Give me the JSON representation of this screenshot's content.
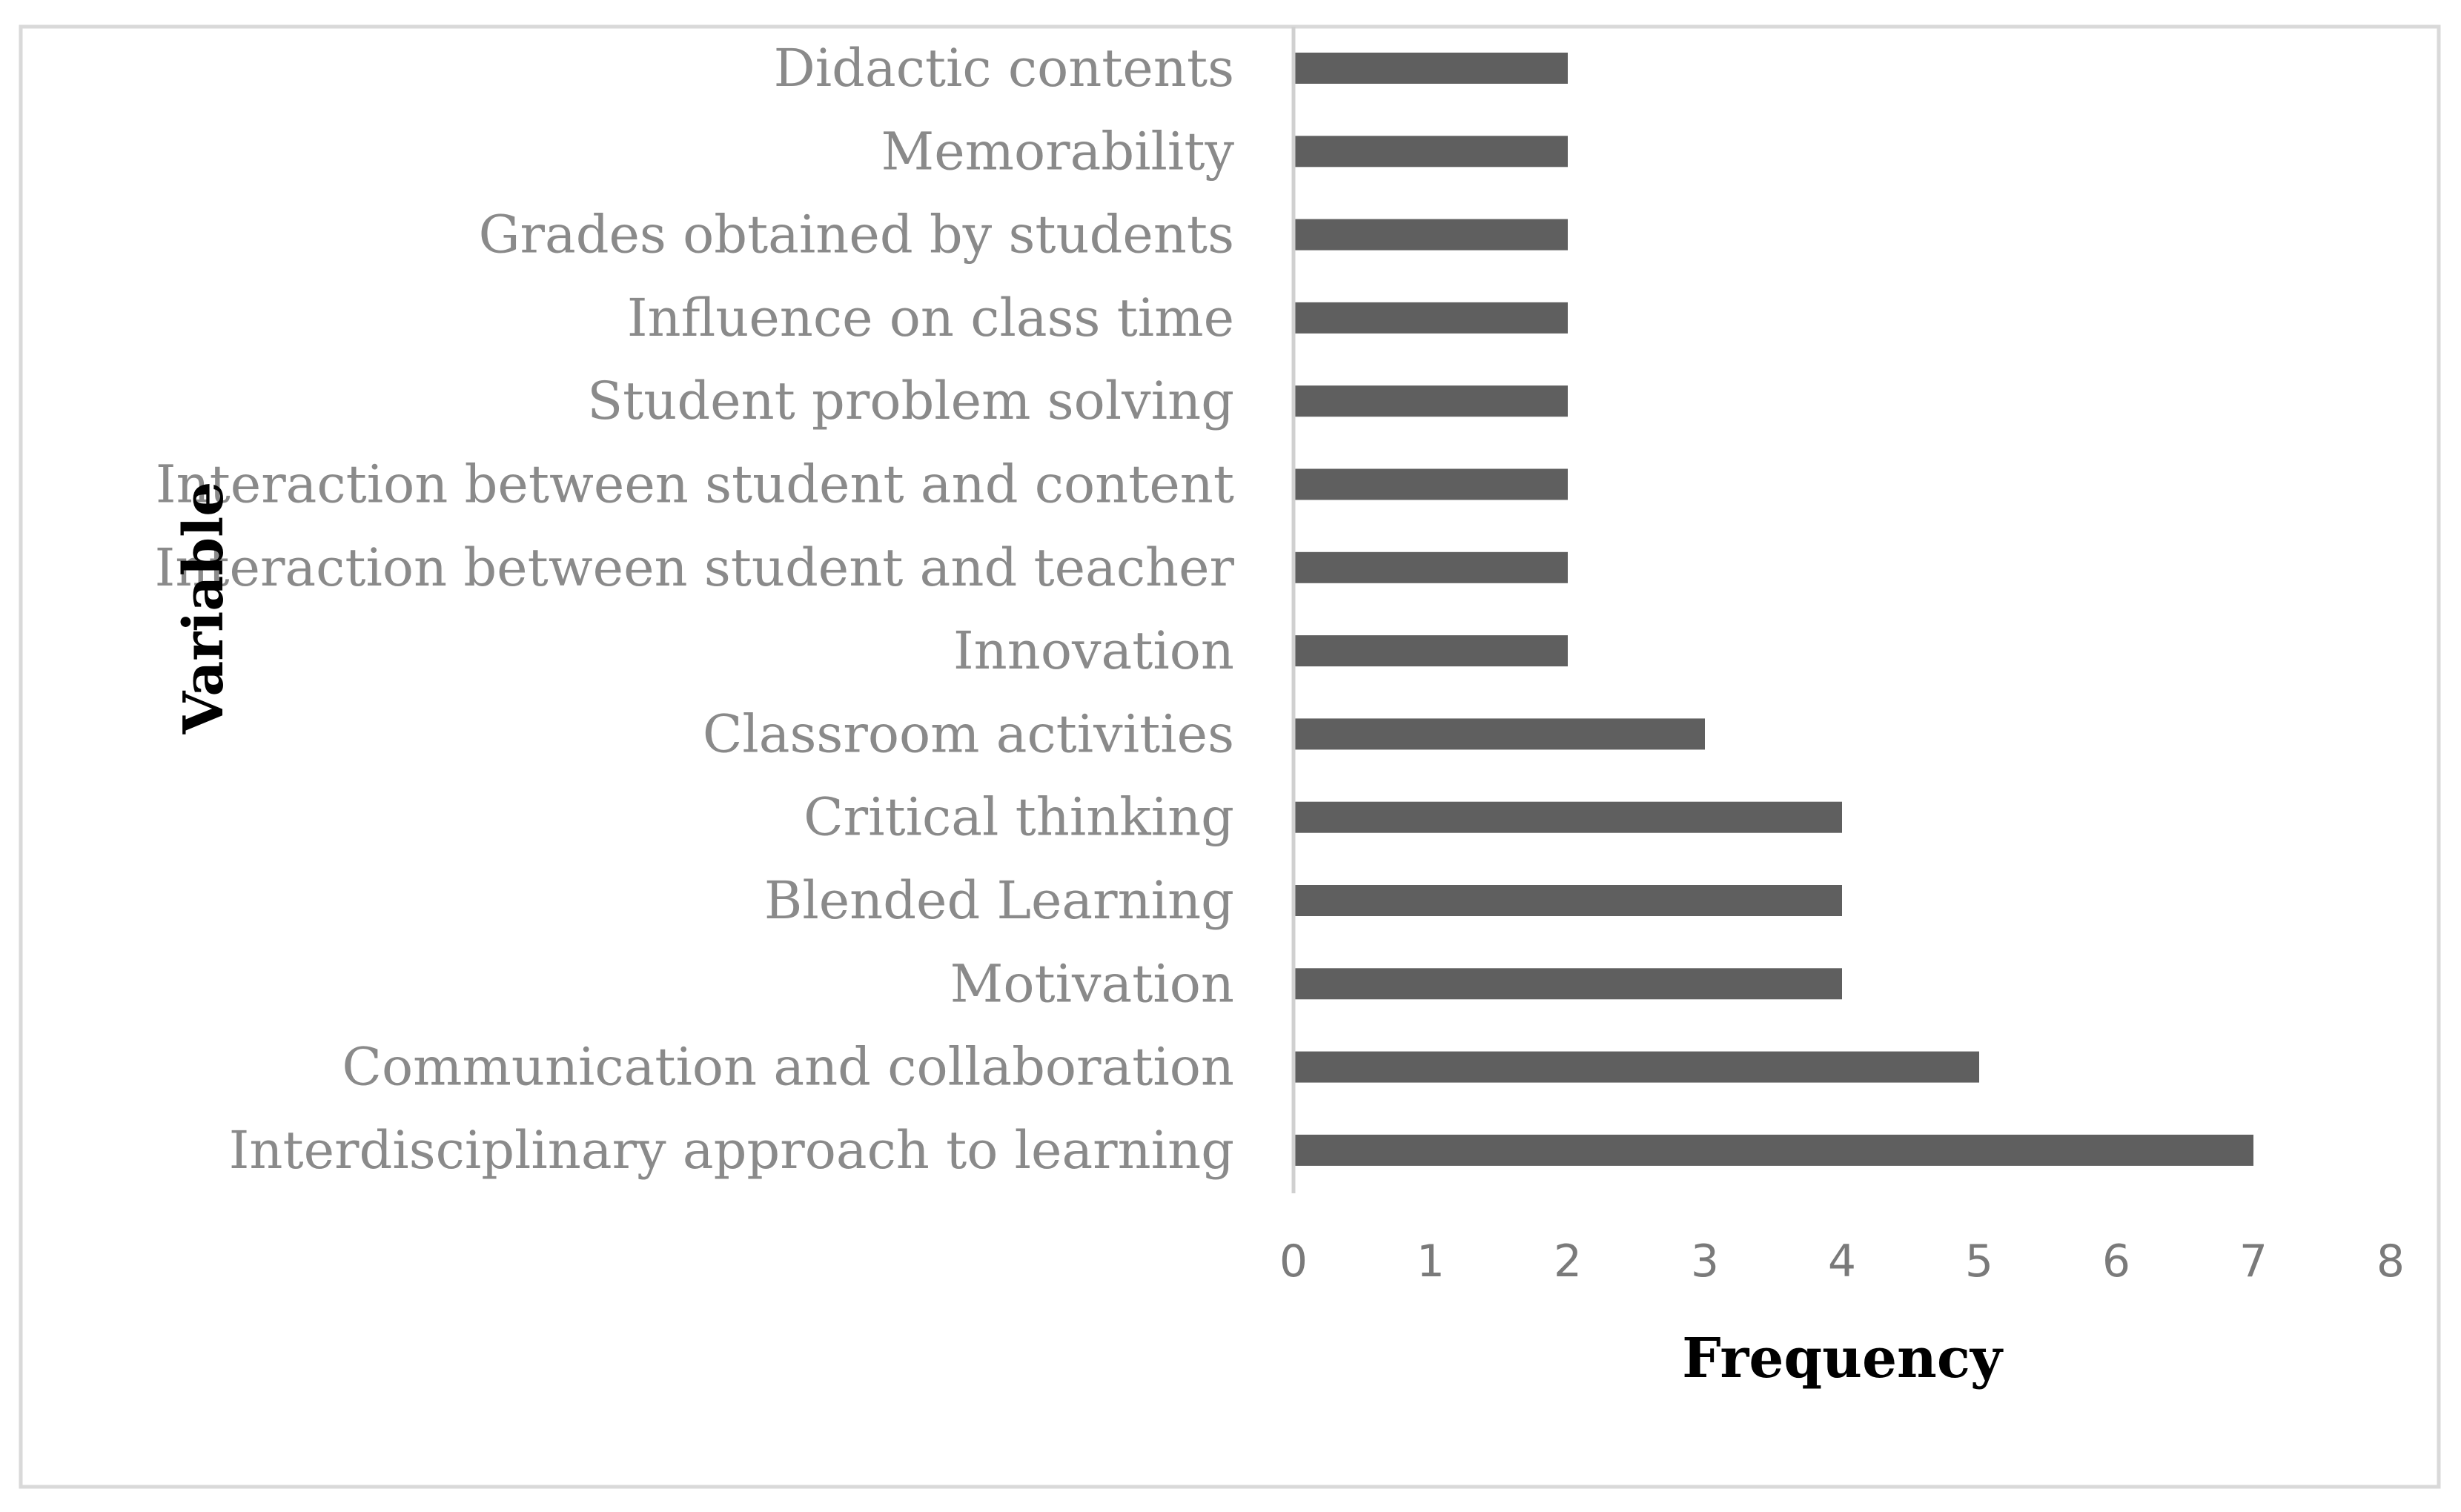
{
  "chart_data": {
    "type": "bar",
    "orientation": "horizontal",
    "title": "",
    "xlabel": "Frequency",
    "ylabel": "Variable",
    "xlim": [
      0,
      8
    ],
    "xticks": [
      "0",
      "1",
      "2",
      "3",
      "4",
      "5",
      "6",
      "7",
      "8"
    ],
    "grid": false,
    "legend": "none",
    "bar_color": "#5f5f5f",
    "categories": [
      "Didactic contents",
      "Memorability",
      "Grades obtained by students",
      "Influence on class time",
      "Student problem solving",
      "Interaction between student and content",
      "Interaction between student and teacher",
      "Innovation",
      "Classroom activities",
      "Critical thinking",
      "Blended Learning",
      "Motivation",
      "Communication and collaboration",
      "Interdisciplinary approach to learning"
    ],
    "values": [
      2,
      2,
      2,
      2,
      2,
      2,
      2,
      2,
      3,
      4,
      4,
      4,
      5,
      7
    ]
  }
}
